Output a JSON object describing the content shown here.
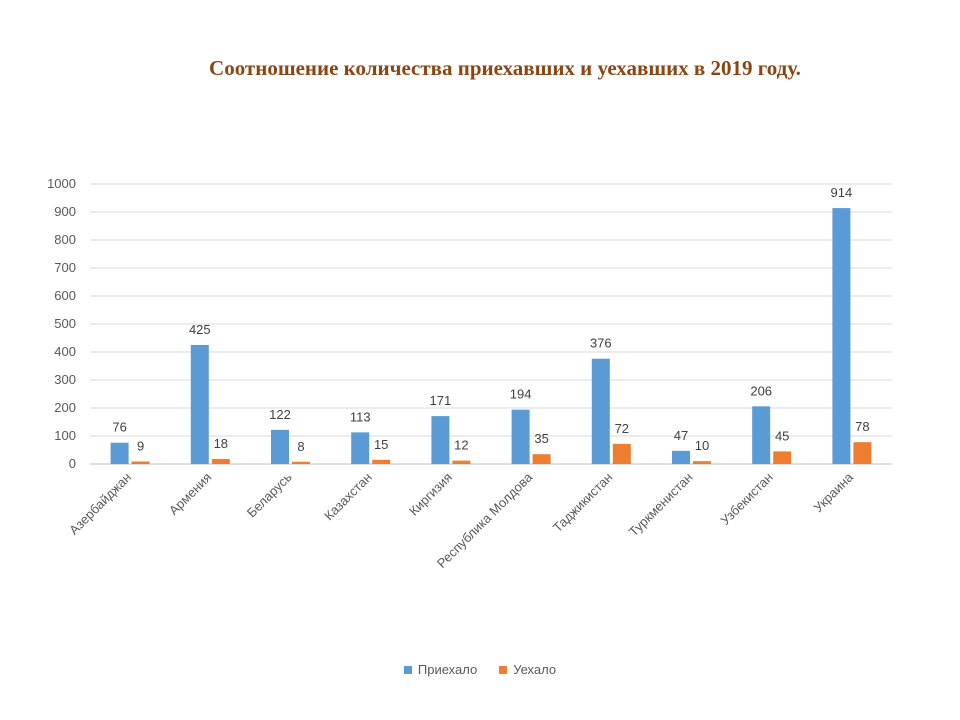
{
  "chart_data": {
    "type": "bar",
    "title": "Соотношение количества приехавших и уехавших в 2019 году.",
    "categories": [
      "Азербайджан",
      "Армения",
      "Беларусь",
      "Казахстан",
      "Киргизия",
      "Республика Молдова",
      "Таджикистан",
      "Туркменистан",
      "Узбекистан",
      "Украина"
    ],
    "series": [
      {
        "name": "Приехало",
        "color": "#5B9BD5",
        "values": [
          76,
          425,
          122,
          113,
          171,
          194,
          376,
          47,
          206,
          914
        ]
      },
      {
        "name": "Уехало",
        "color": "#ED7D31",
        "values": [
          9,
          18,
          8,
          15,
          12,
          35,
          72,
          10,
          45,
          78
        ]
      }
    ],
    "ylim": [
      0,
      1000
    ],
    "yticks": [
      0,
      100,
      200,
      300,
      400,
      500,
      600,
      700,
      800,
      900,
      1000
    ],
    "grid": true,
    "legend_position": "bottom",
    "data_labels": true
  }
}
